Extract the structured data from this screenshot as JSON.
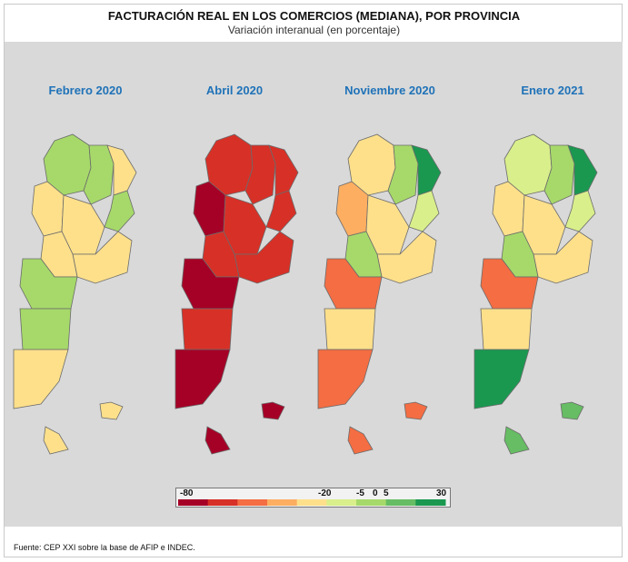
{
  "title": "FACTURACIÓN REAL EN LOS COMERCIOS (MEDIANA), POR PROVINCIA",
  "subtitle": "Variación interanual (en porcentaje)",
  "periods": [
    "Febrero 2020",
    "Abril 2020",
    "Noviembre 2020",
    "Enero 2021"
  ],
  "legend": {
    "ticks": [
      "-80",
      "-20",
      "-5",
      "0",
      "5",
      "30"
    ],
    "min": -80,
    "max": 30,
    "colors": [
      "#a50026",
      "#d73027",
      "#f46d43",
      "#fdae61",
      "#fee08b",
      "#d9ef8b",
      "#a6d96a",
      "#66bd63",
      "#1a9850"
    ]
  },
  "source": "Fuente: CEP XXI sobre la base de AFIP e INDEC.",
  "map_colors": {
    "febrero_2020": {
      "north_west": "#a6d96a",
      "north_center": "#a6d96a",
      "north_east": "#fee08b",
      "cuyo": "#fee08b",
      "center": "#fee08b",
      "litoral": "#a6d96a",
      "buenos_aires": "#fee08b",
      "la_pampa": "#fee08b",
      "neuquen_rio_negro": "#a6d96a",
      "chubut": "#a6d96a",
      "santa_cruz": "#fee08b",
      "tierra_del_fuego": "#fee08b",
      "malvinas": "#fee08b"
    },
    "abril_2020": {
      "north_west": "#d73027",
      "north_center": "#d73027",
      "north_east": "#d73027",
      "cuyo": "#a50026",
      "center": "#d73027",
      "litoral": "#d73027",
      "buenos_aires": "#d73027",
      "la_pampa": "#d73027",
      "neuquen_rio_negro": "#a50026",
      "chubut": "#d73027",
      "santa_cruz": "#a50026",
      "tierra_del_fuego": "#a50026",
      "malvinas": "#a50026"
    },
    "noviembre_2020": {
      "north_west": "#fee08b",
      "north_center": "#a6d96a",
      "north_east": "#1a9850",
      "cuyo": "#fdae61",
      "center": "#fee08b",
      "litoral": "#d9ef8b",
      "buenos_aires": "#fee08b",
      "la_pampa": "#a6d96a",
      "neuquen_rio_negro": "#f46d43",
      "chubut": "#fee08b",
      "santa_cruz": "#f46d43",
      "tierra_del_fuego": "#f46d43",
      "malvinas": "#f46d43"
    },
    "enero_2021": {
      "north_west": "#d9ef8b",
      "north_center": "#a6d96a",
      "north_east": "#1a9850",
      "cuyo": "#fee08b",
      "center": "#fee08b",
      "litoral": "#d9ef8b",
      "buenos_aires": "#fee08b",
      "la_pampa": "#a6d96a",
      "neuquen_rio_negro": "#f46d43",
      "chubut": "#fee08b",
      "santa_cruz": "#1a9850",
      "tierra_del_fuego": "#66bd63",
      "malvinas": "#66bd63"
    }
  }
}
